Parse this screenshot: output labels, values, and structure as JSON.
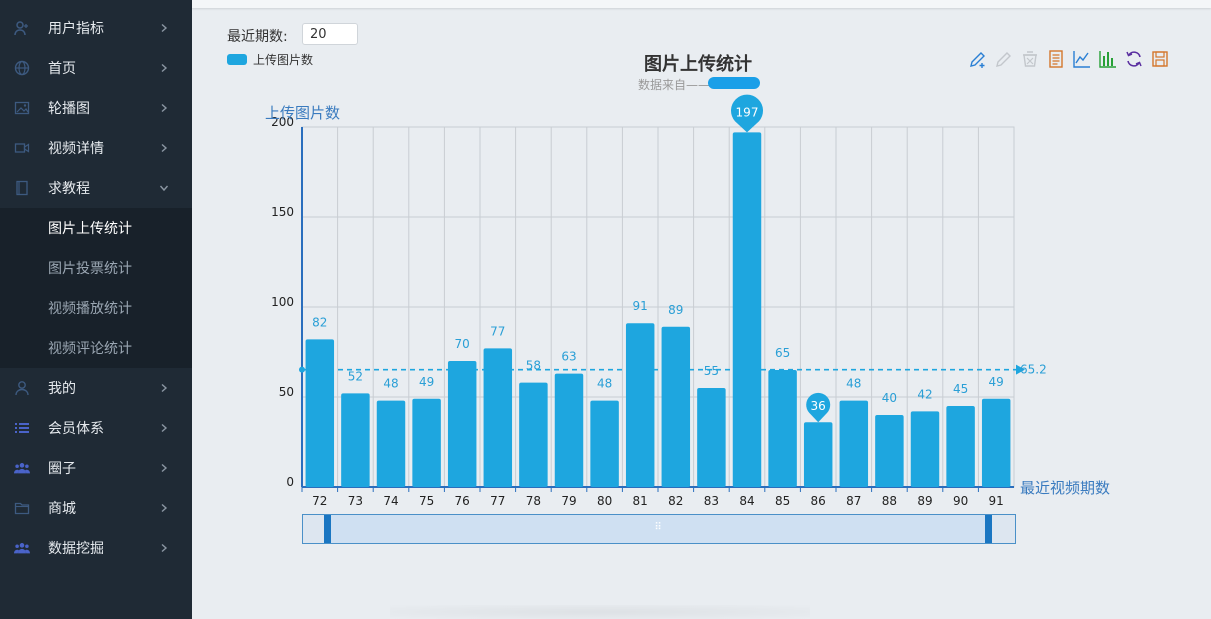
{
  "sidebar": {
    "items": [
      {
        "label": "用户指标",
        "icon": "user-chart-icon"
      },
      {
        "label": "首页",
        "icon": "globe-icon"
      },
      {
        "label": "轮播图",
        "icon": "image-icon"
      },
      {
        "label": "视频详情",
        "icon": "video-camera-icon"
      },
      {
        "label": "求教程",
        "icon": "book-icon",
        "expanded": true
      },
      {
        "label": "我的",
        "icon": "person-icon"
      },
      {
        "label": "会员体系",
        "icon": "list-icon"
      },
      {
        "label": "圈子",
        "icon": "group-icon"
      },
      {
        "label": "商城",
        "icon": "folder-icon"
      },
      {
        "label": "数据挖掘",
        "icon": "group-icon"
      }
    ],
    "subitems": [
      {
        "label": "图片上传统计",
        "active": true
      },
      {
        "label": "图片投票统计"
      },
      {
        "label": "视频播放统计"
      },
      {
        "label": "视频评论统计"
      }
    ]
  },
  "filter": {
    "label": "最近期数:",
    "value": "20"
  },
  "legend": {
    "label": "上传图片数",
    "color": "#1ea6df"
  },
  "toolbox": [
    "pencil-plus-icon",
    "pencil-icon",
    "eraser-icon",
    "data-view-icon",
    "line-chart-icon",
    "bar-chart-icon",
    "refresh-icon",
    "save-icon"
  ],
  "chart_data": {
    "type": "bar",
    "title": "图片上传统计",
    "subtitle": "数据来自——",
    "ylabel": "上传图片数",
    "xlabel": "最近视频期数",
    "ylim": [
      0,
      200
    ],
    "yticks": [
      0,
      50,
      100,
      150,
      200
    ],
    "categories": [
      "72",
      "73",
      "74",
      "75",
      "76",
      "77",
      "78",
      "79",
      "80",
      "81",
      "82",
      "83",
      "84",
      "85",
      "86",
      "87",
      "88",
      "89",
      "90",
      "91"
    ],
    "series": [
      {
        "name": "上传图片数",
        "values": [
          82,
          52,
          48,
          49,
          70,
          77,
          58,
          63,
          48,
          91,
          89,
          55,
          197,
          65,
          36,
          48,
          40,
          42,
          45,
          49
        ]
      }
    ],
    "markPoint": {
      "max": 197,
      "min": 36
    },
    "markLine": {
      "average": 65.2
    },
    "grid": true,
    "legend": "top-left",
    "colors": {
      "bar": "#1ea6df",
      "label": "#2a9fd6",
      "axis": "#2a6ebd",
      "axis_title": "#3a7bbf"
    }
  }
}
